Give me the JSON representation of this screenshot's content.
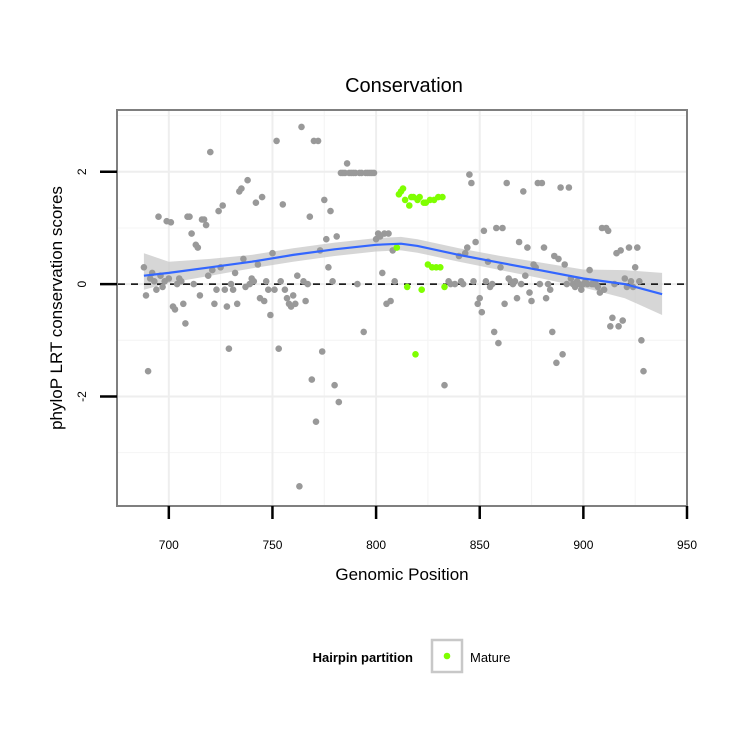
{
  "chart_data": {
    "type": "scatter",
    "title": "Conservation",
    "xlabel": "Genomic Position",
    "ylabel": "phyloP LRT conservation scores",
    "xlim": [
      675,
      950
    ],
    "ylim": [
      -3.95,
      3.1
    ],
    "xticks": [
      700,
      750,
      800,
      850,
      900,
      950
    ],
    "yticks": [
      -2,
      0,
      2
    ],
    "grid": true,
    "reference_line": {
      "y": 0,
      "style": "dashed"
    },
    "legend": {
      "title": "Hairpin partition",
      "position": "bottom",
      "entries": [
        {
          "name": "Mature",
          "color": "#7fff00"
        }
      ]
    },
    "colors": {
      "other": "#999999",
      "mature": "#7fff00",
      "smooth": "#3366ff",
      "band": "#c8c8c8"
    },
    "series": [
      {
        "color": "#999999",
        "points": [
          [
            688,
            0.3
          ],
          [
            689,
            -0.2
          ],
          [
            690,
            -1.55
          ],
          [
            691,
            0.1
          ],
          [
            692,
            0.2
          ],
          [
            693,
            0.05
          ],
          [
            694,
            -0.1
          ],
          [
            695,
            1.2
          ],
          [
            696,
            0.15
          ],
          [
            697,
            -0.05
          ],
          [
            698,
            0.05
          ],
          [
            699,
            1.12
          ],
          [
            700,
            0.1
          ],
          [
            701,
            1.1
          ],
          [
            702,
            -0.4
          ],
          [
            703,
            -0.45
          ],
          [
            704,
            0.0
          ],
          [
            705,
            0.1
          ],
          [
            706,
            0.05
          ],
          [
            707,
            -0.35
          ],
          [
            708,
            -0.7
          ],
          [
            709,
            1.2
          ],
          [
            710,
            1.2
          ],
          [
            711,
            0.9
          ],
          [
            712,
            0.0
          ],
          [
            713,
            0.7
          ],
          [
            714,
            0.65
          ],
          [
            715,
            -0.2
          ],
          [
            716,
            1.15
          ],
          [
            717,
            1.15
          ],
          [
            718,
            1.05
          ],
          [
            719,
            0.15
          ],
          [
            720,
            2.35
          ],
          [
            721,
            0.25
          ],
          [
            722,
            -0.35
          ],
          [
            723,
            -0.1
          ],
          [
            724,
            1.3
          ],
          [
            725,
            0.3
          ],
          [
            726,
            1.4
          ],
          [
            727,
            -0.1
          ],
          [
            728,
            -0.4
          ],
          [
            729,
            -1.15
          ],
          [
            730,
            0.0
          ],
          [
            731,
            -0.1
          ],
          [
            732,
            0.2
          ],
          [
            733,
            -0.35
          ],
          [
            734,
            1.65
          ],
          [
            735,
            1.7
          ],
          [
            736,
            0.45
          ],
          [
            737,
            -0.05
          ],
          [
            738,
            1.85
          ],
          [
            739,
            0.0
          ],
          [
            740,
            0.1
          ],
          [
            741,
            0.05
          ],
          [
            742,
            1.45
          ],
          [
            743,
            0.35
          ],
          [
            744,
            -0.25
          ],
          [
            745,
            1.55
          ],
          [
            746,
            -0.3
          ],
          [
            747,
            0.05
          ],
          [
            748,
            -0.1
          ],
          [
            749,
            -0.55
          ],
          [
            750,
            0.55
          ],
          [
            751,
            -0.1
          ],
          [
            752,
            2.55
          ],
          [
            753,
            -1.15
          ],
          [
            754,
            0.05
          ],
          [
            755,
            1.42
          ],
          [
            756,
            -0.1
          ],
          [
            757,
            -0.25
          ],
          [
            758,
            -0.35
          ],
          [
            759,
            -0.4
          ],
          [
            760,
            -0.2
          ],
          [
            761,
            -0.35
          ],
          [
            762,
            0.15
          ],
          [
            763,
            -3.6
          ],
          [
            764,
            2.8
          ],
          [
            765,
            0.05
          ],
          [
            766,
            -0.3
          ],
          [
            767,
            0.0
          ],
          [
            768,
            1.2
          ],
          [
            769,
            -1.7
          ],
          [
            770,
            2.55
          ],
          [
            771,
            -2.45
          ],
          [
            772,
            2.55
          ],
          [
            773,
            0.6
          ],
          [
            774,
            -1.2
          ],
          [
            775,
            1.5
          ],
          [
            776,
            0.8
          ],
          [
            777,
            0.3
          ],
          [
            778,
            1.3
          ],
          [
            779,
            0.05
          ],
          [
            780,
            -1.8
          ],
          [
            781,
            0.85
          ],
          [
            782,
            -2.1
          ],
          [
            783,
            1.98
          ],
          [
            784,
            1.98
          ],
          [
            785,
            1.98
          ],
          [
            786,
            2.15
          ],
          [
            787,
            1.98
          ],
          [
            788,
            1.98
          ],
          [
            789,
            1.98
          ],
          [
            790,
            1.98
          ],
          [
            791,
            0.0
          ],
          [
            792,
            1.98
          ],
          [
            793,
            1.98
          ],
          [
            794,
            -0.85
          ],
          [
            795,
            1.98
          ],
          [
            796,
            1.98
          ],
          [
            797,
            1.98
          ],
          [
            798,
            1.98
          ],
          [
            799,
            1.98
          ],
          [
            800,
            0.8
          ],
          [
            801,
            0.9
          ],
          [
            802,
            0.85
          ],
          [
            803,
            0.2
          ],
          [
            804,
            0.9
          ],
          [
            805,
            -0.35
          ],
          [
            806,
            0.9
          ],
          [
            807,
            -0.3
          ],
          [
            808,
            0.6
          ],
          [
            809,
            0.05
          ],
          [
            833,
            -1.8
          ],
          [
            835,
            0.05
          ],
          [
            836,
            0.0
          ],
          [
            838,
            0.0
          ],
          [
            840,
            0.5
          ],
          [
            841,
            0.05
          ],
          [
            842,
            0.0
          ],
          [
            843,
            0.55
          ],
          [
            844,
            0.65
          ],
          [
            845,
            1.95
          ],
          [
            846,
            1.8
          ],
          [
            847,
            0.05
          ],
          [
            848,
            0.75
          ],
          [
            849,
            -0.35
          ],
          [
            850,
            -0.25
          ],
          [
            851,
            -0.5
          ],
          [
            852,
            0.95
          ],
          [
            853,
            0.05
          ],
          [
            854,
            0.4
          ],
          [
            855,
            -0.05
          ],
          [
            856,
            0.0
          ],
          [
            857,
            -0.85
          ],
          [
            858,
            1.0
          ],
          [
            859,
            -1.05
          ],
          [
            860,
            0.3
          ],
          [
            861,
            1.0
          ],
          [
            862,
            -0.35
          ],
          [
            863,
            1.8
          ],
          [
            864,
            0.1
          ],
          [
            865,
            0.05
          ],
          [
            866,
            0.0
          ],
          [
            867,
            0.05
          ],
          [
            868,
            -0.25
          ],
          [
            869,
            0.75
          ],
          [
            870,
            0.0
          ],
          [
            871,
            1.65
          ],
          [
            872,
            0.15
          ],
          [
            873,
            0.65
          ],
          [
            874,
            -0.15
          ],
          [
            875,
            -0.3
          ],
          [
            876,
            0.35
          ],
          [
            877,
            0.3
          ],
          [
            878,
            1.8
          ],
          [
            879,
            0.0
          ],
          [
            880,
            1.8
          ],
          [
            881,
            0.65
          ],
          [
            882,
            -0.25
          ],
          [
            883,
            0.0
          ],
          [
            884,
            -0.1
          ],
          [
            885,
            -0.85
          ],
          [
            886,
            0.5
          ],
          [
            887,
            -1.4
          ],
          [
            888,
            0.45
          ],
          [
            889,
            1.72
          ],
          [
            890,
            -1.25
          ],
          [
            891,
            0.35
          ],
          [
            892,
            0.0
          ],
          [
            893,
            1.72
          ],
          [
            894,
            0.1
          ],
          [
            895,
            0.0
          ],
          [
            896,
            -0.05
          ],
          [
            897,
            0.05
          ],
          [
            898,
            0.0
          ],
          [
            899,
            -0.1
          ],
          [
            900,
            0.0
          ],
          [
            901,
            0.05
          ],
          [
            902,
            0.0
          ],
          [
            903,
            0.25
          ],
          [
            904,
            0.0
          ],
          [
            905,
            0.0
          ],
          [
            906,
            0.0
          ],
          [
            907,
            -0.05
          ],
          [
            908,
            -0.15
          ],
          [
            909,
            1.0
          ],
          [
            910,
            -0.1
          ],
          [
            911,
            1.0
          ],
          [
            912,
            0.95
          ],
          [
            913,
            -0.75
          ],
          [
            914,
            -0.6
          ],
          [
            915,
            0.0
          ],
          [
            916,
            0.55
          ],
          [
            917,
            -0.75
          ],
          [
            918,
            0.6
          ],
          [
            919,
            -0.65
          ],
          [
            920,
            0.1
          ],
          [
            921,
            -0.05
          ],
          [
            922,
            0.65
          ],
          [
            923,
            0.05
          ],
          [
            924,
            -0.05
          ],
          [
            925,
            0.3
          ],
          [
            926,
            0.65
          ],
          [
            927,
            0.05
          ],
          [
            928,
            -1.0
          ],
          [
            929,
            -1.55
          ]
        ]
      },
      {
        "name": "Mature",
        "color": "#7fff00",
        "points": [
          [
            810,
            0.65
          ],
          [
            811,
            1.6
          ],
          [
            812,
            1.65
          ],
          [
            813,
            1.7
          ],
          [
            814,
            1.5
          ],
          [
            815,
            -0.05
          ],
          [
            816,
            1.4
          ],
          [
            817,
            1.55
          ],
          [
            818,
            1.55
          ],
          [
            819,
            -1.25
          ],
          [
            820,
            1.5
          ],
          [
            821,
            1.55
          ],
          [
            822,
            -0.1
          ],
          [
            823,
            1.45
          ],
          [
            824,
            1.45
          ],
          [
            825,
            0.35
          ],
          [
            826,
            1.5
          ],
          [
            827,
            0.3
          ],
          [
            828,
            1.5
          ],
          [
            829,
            0.3
          ],
          [
            830,
            1.55
          ],
          [
            831,
            0.3
          ],
          [
            832,
            1.55
          ],
          [
            833,
            -0.05
          ]
        ]
      }
    ],
    "smooth": {
      "x": [
        688,
        700,
        720,
        740,
        760,
        780,
        800,
        812,
        820,
        840,
        860,
        880,
        900,
        920,
        938
      ],
      "y": [
        0.15,
        0.2,
        0.3,
        0.4,
        0.52,
        0.62,
        0.7,
        0.72,
        0.68,
        0.52,
        0.38,
        0.24,
        0.1,
        0.0,
        -0.18
      ],
      "lower": [
        -0.1,
        0.02,
        0.15,
        0.28,
        0.4,
        0.5,
        0.58,
        0.6,
        0.56,
        0.4,
        0.25,
        0.1,
        -0.06,
        -0.25,
        -0.55
      ],
      "upper": [
        0.55,
        0.4,
        0.45,
        0.52,
        0.64,
        0.74,
        0.82,
        0.84,
        0.8,
        0.64,
        0.5,
        0.38,
        0.26,
        0.25,
        0.2
      ]
    }
  }
}
